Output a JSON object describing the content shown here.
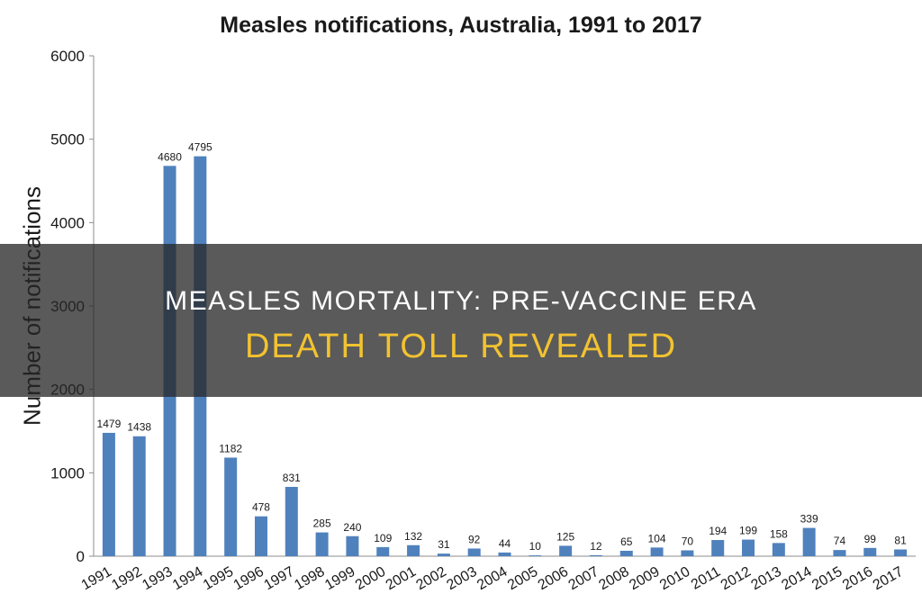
{
  "chart_data": {
    "type": "bar",
    "title": "Measles notifications, Australia, 1991 to 2017",
    "ylabel": "Number of notifications",
    "xlabel": "",
    "ylim": [
      0,
      6000
    ],
    "yticks": [
      0,
      1000,
      2000,
      3000,
      4000,
      5000,
      6000
    ],
    "grid": false,
    "bar_color": "#4f81bd",
    "categories": [
      "1991",
      "1992",
      "1993",
      "1994",
      "1995",
      "1996",
      "1997",
      "1998",
      "1999",
      "2000",
      "2001",
      "2002",
      "2003",
      "2004",
      "2005",
      "2006",
      "2007",
      "2008",
      "2009",
      "2010",
      "2011",
      "2012",
      "2013",
      "2014",
      "2015",
      "2016",
      "2017"
    ],
    "values": [
      1479,
      1438,
      4680,
      4795,
      1182,
      478,
      831,
      285,
      240,
      109,
      132,
      31,
      92,
      44,
      10,
      125,
      12,
      65,
      104,
      70,
      194,
      199,
      158,
      339,
      74,
      99,
      81
    ]
  },
  "overlay": {
    "line1": "MEASLES MORTALITY: PRE-VACCINE ERA",
    "line2": "DEATH TOLL REVEALED",
    "line2_color": "#f2c230"
  }
}
